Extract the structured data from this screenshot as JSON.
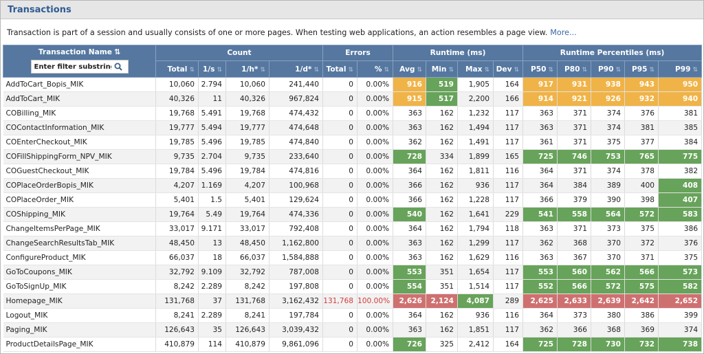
{
  "title": "Transactions",
  "description": "Transaction is part of a session and usually consists of one or more pages. When testing web applications, an action resembles a page view.",
  "more_link": "More...",
  "filter_placeholder": "Enter filter substring",
  "headers": {
    "name": "Transaction Name",
    "groups": [
      "Count",
      "Errors",
      "Runtime (ms)",
      "Runtime Percentiles (ms)"
    ],
    "columns": [
      "Total",
      "1/s",
      "1/h*",
      "1/d*",
      "Total",
      "%",
      "Avg",
      "Min",
      "Max",
      "Dev",
      "P50",
      "P80",
      "P90",
      "P95",
      "P99"
    ]
  },
  "colors": {
    "orange": "#f0b347",
    "green": "#67a35a",
    "red": "#cf7070",
    "header": "#5577a0"
  },
  "rows": [
    {
      "name": "AddToCart_Bopis_MIK",
      "cells": [
        "10,060",
        "2.794",
        "10,060",
        "241,440",
        "0",
        "0.00%",
        "916",
        "519",
        "1,905",
        "164",
        "917",
        "931",
        "938",
        "943",
        "950"
      ],
      "hl": {
        "6": "o",
        "7": "g",
        "10": "o",
        "11": "o",
        "12": "o",
        "13": "o",
        "14": "o"
      }
    },
    {
      "name": "AddToCart_MIK",
      "cells": [
        "40,326",
        "11",
        "40,326",
        "967,824",
        "0",
        "0.00%",
        "915",
        "517",
        "2,200",
        "166",
        "914",
        "921",
        "926",
        "932",
        "940"
      ],
      "hl": {
        "6": "o",
        "7": "g",
        "10": "o",
        "11": "o",
        "12": "o",
        "13": "o",
        "14": "o"
      }
    },
    {
      "name": "COBilling_MIK",
      "cells": [
        "19,768",
        "5.491",
        "19,768",
        "474,432",
        "0",
        "0.00%",
        "363",
        "162",
        "1,232",
        "117",
        "363",
        "371",
        "374",
        "376",
        "381"
      ],
      "hl": {}
    },
    {
      "name": "COContactInformation_MIK",
      "cells": [
        "19,777",
        "5.494",
        "19,777",
        "474,648",
        "0",
        "0.00%",
        "363",
        "162",
        "1,494",
        "117",
        "363",
        "371",
        "374",
        "381",
        "385"
      ],
      "hl": {}
    },
    {
      "name": "COEnterCheckout_MIK",
      "cells": [
        "19,785",
        "5.496",
        "19,785",
        "474,840",
        "0",
        "0.00%",
        "362",
        "162",
        "1,491",
        "117",
        "361",
        "371",
        "375",
        "377",
        "384"
      ],
      "hl": {}
    },
    {
      "name": "COFillShippingForm_NPV_MIK",
      "cells": [
        "9,735",
        "2.704",
        "9,735",
        "233,640",
        "0",
        "0.00%",
        "728",
        "334",
        "1,899",
        "165",
        "725",
        "746",
        "753",
        "765",
        "775"
      ],
      "hl": {
        "6": "g",
        "10": "g",
        "11": "g",
        "12": "g",
        "13": "g",
        "14": "g"
      }
    },
    {
      "name": "COGuestCheckout_MIK",
      "cells": [
        "19,784",
        "5.496",
        "19,784",
        "474,816",
        "0",
        "0.00%",
        "364",
        "162",
        "1,811",
        "116",
        "364",
        "371",
        "374",
        "378",
        "382"
      ],
      "hl": {}
    },
    {
      "name": "COPlaceOrderBopis_MIK",
      "cells": [
        "4,207",
        "1.169",
        "4,207",
        "100,968",
        "0",
        "0.00%",
        "366",
        "162",
        "936",
        "117",
        "364",
        "384",
        "389",
        "400",
        "408"
      ],
      "hl": {
        "14": "g"
      }
    },
    {
      "name": "COPlaceOrder_MIK",
      "cells": [
        "5,401",
        "1.5",
        "5,401",
        "129,624",
        "0",
        "0.00%",
        "366",
        "162",
        "1,228",
        "117",
        "366",
        "379",
        "390",
        "398",
        "407"
      ],
      "hl": {
        "14": "g"
      }
    },
    {
      "name": "COShipping_MIK",
      "cells": [
        "19,764",
        "5.49",
        "19,764",
        "474,336",
        "0",
        "0.00%",
        "540",
        "162",
        "1,641",
        "229",
        "541",
        "558",
        "564",
        "572",
        "583"
      ],
      "hl": {
        "6": "g",
        "10": "g",
        "11": "g",
        "12": "g",
        "13": "g",
        "14": "g"
      }
    },
    {
      "name": "ChangeItemsPerPage_MIK",
      "cells": [
        "33,017",
        "9.171",
        "33,017",
        "792,408",
        "0",
        "0.00%",
        "364",
        "162",
        "1,794",
        "118",
        "363",
        "371",
        "373",
        "375",
        "386"
      ],
      "hl": {}
    },
    {
      "name": "ChangeSearchResultsTab_MIK",
      "cells": [
        "48,450",
        "13",
        "48,450",
        "1,162,800",
        "0",
        "0.00%",
        "363",
        "162",
        "1,299",
        "117",
        "362",
        "368",
        "370",
        "372",
        "376"
      ],
      "hl": {}
    },
    {
      "name": "ConfigureProduct_MIK",
      "cells": [
        "66,037",
        "18",
        "66,037",
        "1,584,888",
        "0",
        "0.00%",
        "363",
        "162",
        "1,629",
        "116",
        "363",
        "367",
        "370",
        "371",
        "375"
      ],
      "hl": {}
    },
    {
      "name": "GoToCoupons_MIK",
      "cells": [
        "32,792",
        "9.109",
        "32,792",
        "787,008",
        "0",
        "0.00%",
        "553",
        "351",
        "1,654",
        "117",
        "553",
        "560",
        "562",
        "566",
        "573"
      ],
      "hl": {
        "6": "g",
        "10": "g",
        "11": "g",
        "12": "g",
        "13": "g",
        "14": "g"
      }
    },
    {
      "name": "GoToSignUp_MIK",
      "cells": [
        "8,242",
        "2.289",
        "8,242",
        "197,808",
        "0",
        "0.00%",
        "554",
        "351",
        "1,514",
        "117",
        "552",
        "566",
        "572",
        "575",
        "582"
      ],
      "hl": {
        "6": "g",
        "10": "g",
        "11": "g",
        "12": "g",
        "13": "g",
        "14": "g"
      }
    },
    {
      "name": "Homepage_MIK",
      "cells": [
        "131,768",
        "37",
        "131,768",
        "3,162,432",
        "131,768",
        "100.00%",
        "2,626",
        "2,124",
        "4,087",
        "289",
        "2,625",
        "2,633",
        "2,639",
        "2,642",
        "2,652"
      ],
      "hl": {
        "4": "e",
        "5": "e",
        "6": "r",
        "7": "r",
        "8": "g",
        "10": "r",
        "11": "r",
        "12": "r",
        "13": "r",
        "14": "r"
      }
    },
    {
      "name": "Logout_MIK",
      "cells": [
        "8,241",
        "2.289",
        "8,241",
        "197,784",
        "0",
        "0.00%",
        "364",
        "162",
        "936",
        "116",
        "364",
        "373",
        "380",
        "386",
        "399"
      ],
      "hl": {}
    },
    {
      "name": "Paging_MIK",
      "cells": [
        "126,643",
        "35",
        "126,643",
        "3,039,432",
        "0",
        "0.00%",
        "363",
        "162",
        "1,851",
        "117",
        "362",
        "366",
        "368",
        "369",
        "374"
      ],
      "hl": {}
    },
    {
      "name": "ProductDetailsPage_MIK",
      "cells": [
        "410,879",
        "114",
        "410,879",
        "9,861,096",
        "0",
        "0.00%",
        "726",
        "325",
        "2,412",
        "164",
        "725",
        "728",
        "730",
        "732",
        "738"
      ],
      "hl": {
        "6": "g",
        "10": "g",
        "11": "g",
        "12": "g",
        "13": "g",
        "14": "g"
      }
    }
  ]
}
